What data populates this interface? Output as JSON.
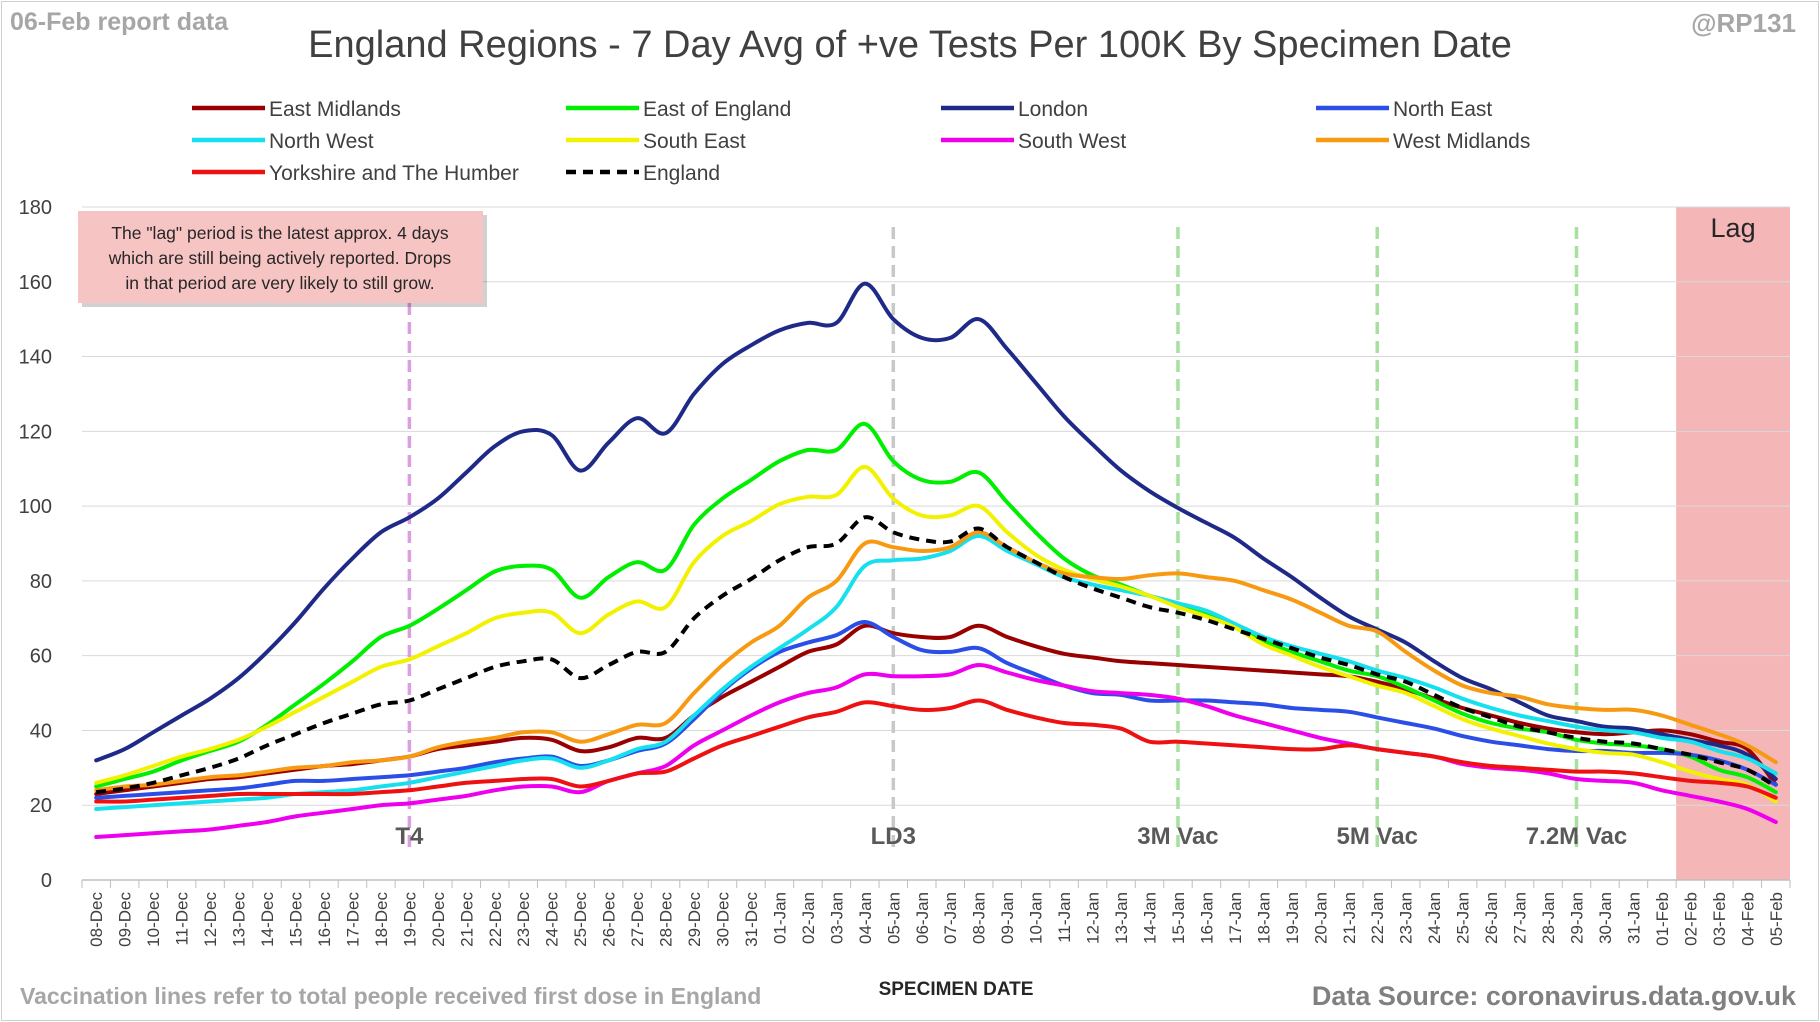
{
  "header": {
    "report_date": "06-Feb report data",
    "handle": "@RP131",
    "title": "England Regions - 7 Day Avg of +ve Tests Per 100K By Specimen Date"
  },
  "footer": {
    "note": "Vaccination lines refer to total people received first dose in England",
    "source": "Data Source: coronavirus.data.gov.uk"
  },
  "annotation": {
    "lag_note": [
      "The \"lag\" period is the latest approx. 4 days",
      "which are still being actively reported.  Drops",
      "in that period are very likely to still grow."
    ],
    "lag_label": "Lag",
    "lag_color": "#f4b6b6"
  },
  "chart_data": {
    "type": "line",
    "title": "England Regions - 7 Day Avg of +ve Tests Per 100K By Specimen Date",
    "xlabel": "SPECIMEN DATE",
    "ylabel": "",
    "ylim": [
      0,
      180
    ],
    "yticks": [
      0,
      20,
      40,
      60,
      80,
      100,
      120,
      140,
      160,
      180
    ],
    "grid": "horizontal",
    "legend_position": "top",
    "categories": [
      "08-Dec",
      "09-Dec",
      "10-Dec",
      "11-Dec",
      "12-Dec",
      "13-Dec",
      "14-Dec",
      "15-Dec",
      "16-Dec",
      "17-Dec",
      "18-Dec",
      "19-Dec",
      "20-Dec",
      "21-Dec",
      "22-Dec",
      "23-Dec",
      "24-Dec",
      "25-Dec",
      "26-Dec",
      "27-Dec",
      "28-Dec",
      "29-Dec",
      "30-Dec",
      "31-Dec",
      "01-Jan",
      "02-Jan",
      "03-Jan",
      "04-Jan",
      "05-Jan",
      "06-Jan",
      "07-Jan",
      "08-Jan",
      "09-Jan",
      "10-Jan",
      "11-Jan",
      "12-Jan",
      "13-Jan",
      "14-Jan",
      "15-Jan",
      "16-Jan",
      "17-Jan",
      "18-Jan",
      "19-Jan",
      "20-Jan",
      "21-Jan",
      "22-Jan",
      "23-Jan",
      "24-Jan",
      "25-Jan",
      "26-Jan",
      "27-Jan",
      "28-Jan",
      "29-Jan",
      "30-Jan",
      "31-Jan",
      "01-Feb",
      "02-Feb",
      "03-Feb",
      "04-Feb",
      "05-Feb"
    ],
    "vlines": [
      {
        "label": "T4",
        "date": "19-Dec",
        "color": "#dd9ee0"
      },
      {
        "label": "LD3",
        "date": "05-Jan",
        "color": "#c8c8c8"
      },
      {
        "label": "3M Vac",
        "date": "15-Jan",
        "color": "#a8e0a0"
      },
      {
        "label": "5M Vac",
        "date": "22-Jan",
        "color": "#a8e0a0"
      },
      {
        "label": "7.2M Vac",
        "date": "29-Jan",
        "color": "#a8e0a0"
      }
    ],
    "lag_from": "02-Feb",
    "series": [
      {
        "name": "East Midlands",
        "color": "#990000",
        "dashed": false,
        "values": [
          23,
          24,
          25,
          26,
          27,
          27.5,
          28.5,
          29.5,
          30.5,
          31,
          32,
          33,
          35,
          36,
          37,
          38,
          37.5,
          34.5,
          35.5,
          38,
          38,
          44,
          49,
          53,
          57,
          61,
          63,
          68,
          66,
          65,
          65,
          68,
          65,
          62.5,
          60.5,
          59.5,
          58.5,
          58,
          57.5,
          57,
          56.5,
          56,
          55.5,
          55,
          54.5,
          53,
          51,
          48.5,
          46,
          44,
          42,
          40.5,
          39.5,
          39,
          39.5,
          40,
          39,
          37,
          35,
          25.5
        ]
      },
      {
        "name": "East of England",
        "color": "#00ee00",
        "dashed": false,
        "values": [
          25,
          27,
          29,
          32,
          34.5,
          37,
          41.5,
          47,
          52.5,
          58.5,
          65,
          68,
          72.5,
          77.5,
          82.5,
          84,
          83,
          75.5,
          81,
          85,
          83,
          95,
          102,
          107,
          112,
          115,
          115,
          122,
          112,
          107,
          106.5,
          109,
          101,
          93,
          86,
          81.5,
          79,
          76,
          73.5,
          71,
          67.5,
          64,
          61,
          58.5,
          56,
          54.5,
          51.5,
          48,
          44.5,
          42,
          40.5,
          39.5,
          37.5,
          36.5,
          36,
          35,
          33,
          29.5,
          27.5,
          23.5
        ]
      },
      {
        "name": "London",
        "color": "#1f2a88",
        "dashed": false,
        "values": [
          32,
          35,
          39.5,
          44,
          48.5,
          54,
          61,
          69,
          78,
          86,
          93,
          97,
          102,
          109,
          116,
          120,
          119,
          109.5,
          117,
          123.5,
          119.5,
          130,
          138,
          143,
          147,
          149,
          149,
          159.5,
          150,
          145,
          145,
          150,
          142,
          133,
          124,
          116.5,
          109.5,
          104,
          99.5,
          95.5,
          91.5,
          86,
          81,
          75.5,
          70.5,
          67,
          63.5,
          58.5,
          54,
          51,
          47.5,
          44,
          42.5,
          41,
          40.5,
          39,
          37.5,
          36,
          33.5,
          27
        ]
      },
      {
        "name": "North East",
        "color": "#2b4fe6",
        "dashed": false,
        "values": [
          22,
          22.5,
          23,
          23.5,
          24,
          24.5,
          25.5,
          26.5,
          26.5,
          27,
          27.5,
          28,
          29,
          30,
          31.5,
          32.5,
          33,
          30.5,
          32,
          34.5,
          36.5,
          43,
          50.5,
          56.5,
          61,
          63.5,
          65.5,
          69,
          65,
          61.5,
          61,
          62,
          58,
          55,
          52,
          50,
          49.5,
          48,
          48,
          48,
          47.5,
          47,
          46,
          45.5,
          45,
          43.5,
          42,
          40.5,
          38.5,
          37,
          36,
          35,
          34.5,
          34.5,
          34,
          34,
          33.5,
          32,
          29.5,
          25.5
        ]
      },
      {
        "name": "North West",
        "color": "#17e0ee",
        "dashed": false,
        "values": [
          19,
          19.5,
          20,
          20.5,
          21,
          21.5,
          22,
          23,
          23.5,
          24,
          25,
          26,
          27.5,
          29,
          30.5,
          32,
          32.5,
          30,
          32,
          35,
          37,
          44,
          51,
          57,
          62,
          67,
          73,
          84,
          85.5,
          86,
          88,
          92,
          88,
          84.5,
          81,
          79,
          77.5,
          76,
          74,
          72,
          68.5,
          65,
          62.5,
          60.5,
          58.5,
          56,
          54,
          51.5,
          48.5,
          46,
          44,
          42.5,
          41,
          40,
          39.5,
          38,
          37,
          34.5,
          32.5,
          28.5
        ]
      },
      {
        "name": "South East",
        "color": "#f2f200",
        "dashed": false,
        "values": [
          26,
          28,
          30.5,
          33,
          35,
          37.5,
          41,
          45,
          49,
          53,
          57,
          59,
          62.5,
          66,
          70,
          71.5,
          71.5,
          66,
          71,
          74.5,
          73,
          85,
          92,
          96,
          100.5,
          102.5,
          103,
          110.5,
          102,
          97.5,
          97.5,
          100,
          93,
          87,
          83,
          80.5,
          78.5,
          76,
          73,
          70.5,
          67.5,
          63,
          60,
          57,
          54.5,
          52,
          50,
          46.5,
          43,
          40.5,
          38.5,
          36.5,
          35,
          34,
          33.5,
          31.5,
          29,
          27,
          25.5,
          21
        ]
      },
      {
        "name": "South West",
        "color": "#ee00ee",
        "dashed": false,
        "values": [
          11.5,
          12,
          12.5,
          13,
          13.5,
          14.5,
          15.5,
          17,
          18,
          19,
          20,
          20.5,
          21.5,
          22.5,
          24,
          25,
          25,
          23.5,
          26.5,
          28.5,
          30.5,
          36,
          40,
          44,
          47.5,
          50,
          51.5,
          55,
          54.5,
          54.5,
          55,
          57.5,
          55.5,
          53.5,
          52,
          50.5,
          50,
          49.5,
          48.5,
          46.5,
          44,
          42,
          40,
          38,
          36.5,
          35,
          34,
          33,
          31,
          30,
          29.5,
          28.5,
          27,
          26.5,
          26,
          24,
          22.5,
          21,
          19,
          15.5
        ]
      },
      {
        "name": "West Midlands",
        "color": "#f79a12",
        "dashed": false,
        "values": [
          24,
          25,
          25.5,
          26.5,
          27.5,
          28,
          29,
          30,
          30.5,
          31.5,
          32,
          33,
          35.5,
          37,
          38,
          39.5,
          39.5,
          37,
          39,
          41.5,
          42,
          50,
          57.5,
          63.5,
          68,
          75.5,
          80,
          90,
          89,
          88,
          89,
          93,
          89,
          85,
          82,
          81,
          80.5,
          81.5,
          82,
          81,
          80,
          77.5,
          75,
          71.5,
          68,
          66.5,
          61,
          56,
          52,
          50,
          49,
          47,
          46,
          45.5,
          45.5,
          44,
          41.5,
          39,
          36,
          31.5
        ]
      },
      {
        "name": "Yorkshire and The Humber",
        "color": "#ee1111",
        "dashed": false,
        "values": [
          21,
          21,
          21.5,
          22,
          22.5,
          23,
          23,
          23,
          23,
          23,
          23.5,
          24,
          25,
          26,
          26.5,
          27,
          27,
          25,
          26.5,
          28.5,
          29,
          32.5,
          36,
          38.5,
          41,
          43.5,
          45,
          47.5,
          46.5,
          45.5,
          46,
          48,
          45.5,
          43.5,
          42,
          41.5,
          40.5,
          37,
          37,
          36.5,
          36,
          35.5,
          35,
          35,
          36,
          35,
          34,
          33,
          31.5,
          30.5,
          30,
          29.5,
          29,
          29,
          28.5,
          27.5,
          26.5,
          26,
          25,
          22
        ]
      },
      {
        "name": "England",
        "color": "#000000",
        "dashed": true,
        "values": [
          23.5,
          24.5,
          26,
          28,
          30,
          32.5,
          36,
          39,
          42,
          44.5,
          47,
          48,
          51,
          54,
          57,
          58.5,
          59,
          54,
          57.5,
          61,
          61,
          70,
          76,
          80.5,
          85.5,
          89,
          90,
          97,
          93,
          91,
          90.5,
          94,
          89,
          85,
          81,
          78,
          75.5,
          73,
          71.5,
          69.5,
          67,
          64.5,
          62,
          59.5,
          57.5,
          55,
          53,
          49.5,
          46,
          43.5,
          41,
          39.5,
          38,
          37,
          36.5,
          35,
          33.5,
          31.5,
          29.5,
          25
        ]
      }
    ]
  }
}
